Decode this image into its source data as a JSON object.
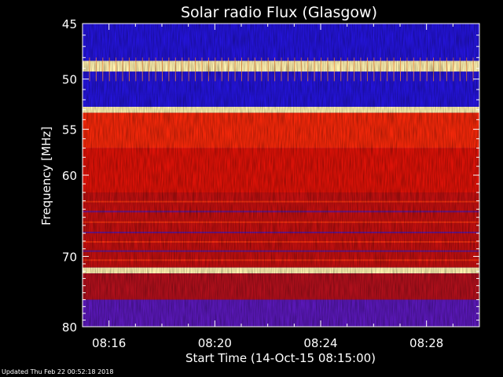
{
  "footer": {
    "updated": "Updated Thu Feb 22 00:52:18 2018"
  },
  "colors": {
    "background": "#000000",
    "axis": "#ffffff",
    "text": "#ffffff"
  },
  "chart_data": {
    "type": "heatmap",
    "title": "Solar radio Flux (Glasgow)",
    "xlabel": "Start Time (14-Oct-15 08:15:00)",
    "ylabel": "Frequency [MHz]",
    "xlim": [
      "08:15:00",
      "08:30:00"
    ],
    "ylim": [
      45,
      80
    ],
    "y_scale": "log",
    "xticks": [
      "08:16",
      "08:20",
      "08:24",
      "08:28"
    ],
    "xticks_minutes_from_start": [
      1,
      5,
      9,
      13
    ],
    "yticks": [
      45,
      50,
      55,
      60,
      70,
      80
    ],
    "grid": false,
    "colormap": "blue-red-yellow",
    "intensity_bands": [
      {
        "from_mhz": 45.0,
        "to_mhz": 48.3,
        "level": "low"
      },
      {
        "from_mhz": 48.3,
        "to_mhz": 49.3,
        "level": "saturated"
      },
      {
        "from_mhz": 49.3,
        "to_mhz": 51.5,
        "level": "low"
      },
      {
        "from_mhz": 51.5,
        "to_mhz": 52.7,
        "level": "low"
      },
      {
        "from_mhz": 52.7,
        "to_mhz": 53.3,
        "level": "saturated"
      },
      {
        "from_mhz": 53.3,
        "to_mhz": 57.0,
        "level": "high"
      },
      {
        "from_mhz": 57.0,
        "to_mhz": 62.0,
        "level": "medium-high"
      },
      {
        "from_mhz": 62.0,
        "to_mhz": 71.5,
        "level": "mixed"
      },
      {
        "from_mhz": 71.5,
        "to_mhz": 72.3,
        "level": "saturated"
      },
      {
        "from_mhz": 72.3,
        "to_mhz": 76.0,
        "level": "medium"
      },
      {
        "from_mhz": 76.0,
        "to_mhz": 80.0,
        "level": "low-medium"
      }
    ]
  }
}
